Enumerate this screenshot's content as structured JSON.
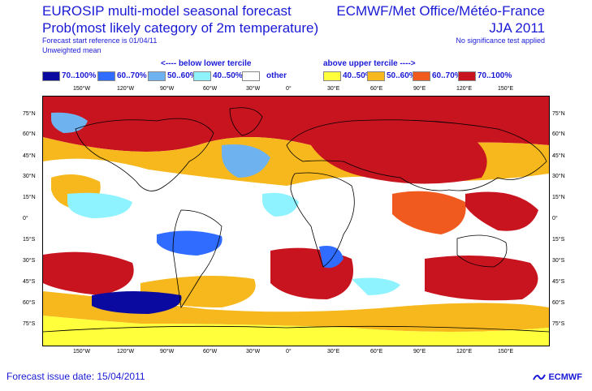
{
  "header": {
    "title_line1": "EUROSIP multi-model seasonal forecast",
    "title_line2": "Prob(most likely category of 2m temperature)",
    "start_reference": "Forecast start reference is 01/04/11",
    "mean_type": "Unweighted mean",
    "provider": "ECMWF/Met Office/Météo-France",
    "season": "JJA 2011",
    "significance": "No significance test applied"
  },
  "tercile": {
    "below": "<---- below lower tercile",
    "above": "above upper tercile ---->"
  },
  "legend": [
    {
      "label": "70..100%",
      "color": "#0a0aa0"
    },
    {
      "label": "60..70%",
      "color": "#2f6cff"
    },
    {
      "label": "50..60%",
      "color": "#6fb2f0"
    },
    {
      "label": "40..50%",
      "color": "#8ff3ff"
    },
    {
      "label": "other",
      "color": "#ffffff"
    },
    {
      "label": "40..50%",
      "color": "#ffff3c"
    },
    {
      "label": "50..60%",
      "color": "#f6b81c"
    },
    {
      "label": "60..70%",
      "color": "#f05a1e"
    },
    {
      "label": "70..100%",
      "color": "#c8141e"
    }
  ],
  "map": {
    "lon_labels": [
      "150°W",
      "120°W",
      "90°W",
      "60°W",
      "30°W",
      "0°",
      "30°E",
      "60°E",
      "90°E",
      "120°E",
      "150°E"
    ],
    "lat_labels": [
      "75°N",
      "60°N",
      "45°N",
      "30°N",
      "15°N",
      "0°",
      "15°S",
      "30°S",
      "45°S",
      "60°S",
      "75°S"
    ]
  },
  "footer": {
    "issue_date": "Forecast issue date: 15/04/2011",
    "logo_text": "ECMWF"
  }
}
